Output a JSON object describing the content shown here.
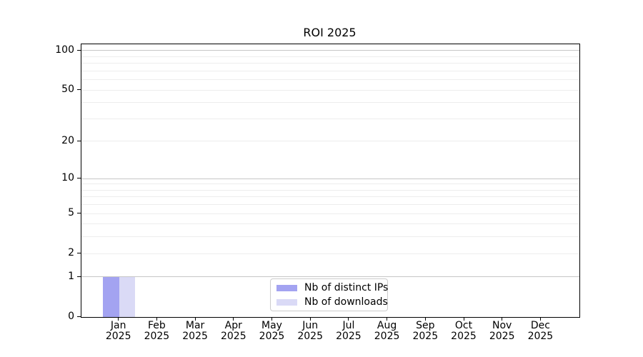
{
  "chart_data": {
    "type": "bar",
    "title": "ROI 2025",
    "categories": [
      {
        "month": "Jan",
        "year": "2025"
      },
      {
        "month": "Feb",
        "year": "2025"
      },
      {
        "month": "Mar",
        "year": "2025"
      },
      {
        "month": "Apr",
        "year": "2025"
      },
      {
        "month": "May",
        "year": "2025"
      },
      {
        "month": "Jun",
        "year": "2025"
      },
      {
        "month": "Jul",
        "year": "2025"
      },
      {
        "month": "Aug",
        "year": "2025"
      },
      {
        "month": "Sep",
        "year": "2025"
      },
      {
        "month": "Oct",
        "year": "2025"
      },
      {
        "month": "Nov",
        "year": "2025"
      },
      {
        "month": "Dec",
        "year": "2025"
      }
    ],
    "series": [
      {
        "name": "Nb of distinct IPs",
        "color": "#a3a3f1",
        "values": [
          1,
          0,
          0,
          0,
          0,
          0,
          0,
          0,
          0,
          0,
          0,
          0
        ]
      },
      {
        "name": "Nb of downloads",
        "color": "#dadaf6",
        "values": [
          1,
          0,
          0,
          0,
          0,
          0,
          0,
          0,
          0,
          0,
          0,
          0
        ]
      }
    ],
    "xlabel": "",
    "ylabel": "",
    "yscale": "log1p",
    "ylim": [
      0,
      111.6
    ],
    "yticks": [
      0,
      1,
      2,
      5,
      10,
      20,
      50,
      100
    ],
    "grid_major_values": [
      1,
      10,
      100
    ],
    "grid_minor_values": [
      2,
      3,
      4,
      5,
      6,
      7,
      8,
      9,
      20,
      30,
      40,
      50,
      60,
      70,
      80,
      90
    ],
    "grid": "on",
    "legend_position": "lower center"
  },
  "colors": {
    "background": "#ffffff",
    "spine": "#000000",
    "grid_major": "#c6c6c6",
    "grid_minor": "#ededed",
    "bar_distinct_ips": "#a3a3f1",
    "bar_downloads": "#dadaf6",
    "legend_border": "#cccccc"
  }
}
